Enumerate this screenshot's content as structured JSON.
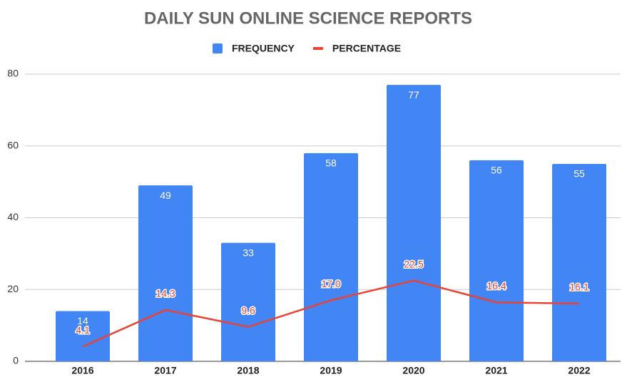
{
  "chart_data": {
    "type": "bar",
    "title": "DAILY SUN ONLINE SCIENCE REPORTS",
    "categories": [
      "2016",
      "2017",
      "2018",
      "2019",
      "2020",
      "2021",
      "2022"
    ],
    "series": [
      {
        "name": "FREQUENCY",
        "type": "bar",
        "color": "#4285f4",
        "values": [
          14,
          49,
          33,
          58,
          77,
          56,
          55
        ]
      },
      {
        "name": "PERCENTAGE",
        "type": "line",
        "color": "#ea4335",
        "values": [
          4.1,
          14.3,
          9.6,
          17.0,
          22.5,
          16.4,
          16.1
        ],
        "value_labels": [
          "4.1",
          "14.3",
          "9.6",
          "17.0",
          "22.5",
          "16.4",
          "16.1"
        ]
      }
    ],
    "ylim": [
      0,
      80
    ],
    "yticks": [
      0,
      20,
      40,
      60,
      80
    ],
    "grid": true,
    "legend": "top"
  }
}
